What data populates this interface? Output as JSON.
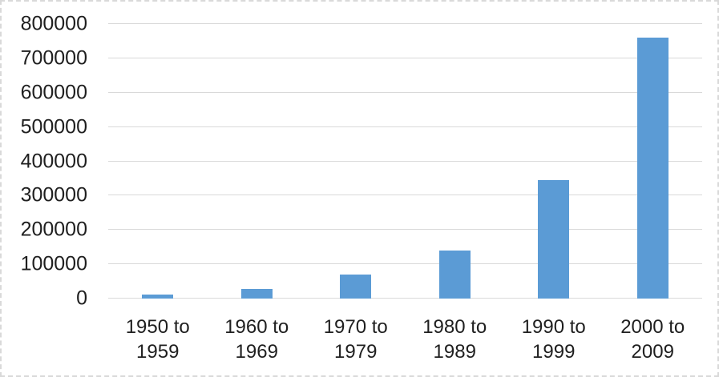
{
  "chart_data": {
    "type": "bar",
    "title": "",
    "xlabel": "",
    "ylabel": "",
    "categories": [
      "1950 to 1959",
      "1960 to 1969",
      "1970 to 1979",
      "1980 to 1989",
      "1990 to 1999",
      "2000 to 2009"
    ],
    "values": [
      12000,
      27000,
      70000,
      140000,
      345000,
      760000
    ],
    "ylim": [
      0,
      800000
    ],
    "yticks": [
      0,
      100000,
      200000,
      300000,
      400000,
      500000,
      600000,
      700000,
      800000
    ],
    "grid": true,
    "legend": false,
    "colors": {
      "bar_fill": "#5b9bd5",
      "gridline": "#d9d9d9",
      "axis_text": "#1f1f1f",
      "frame_border": "#d9d9d9",
      "background": "#ffffff"
    }
  }
}
